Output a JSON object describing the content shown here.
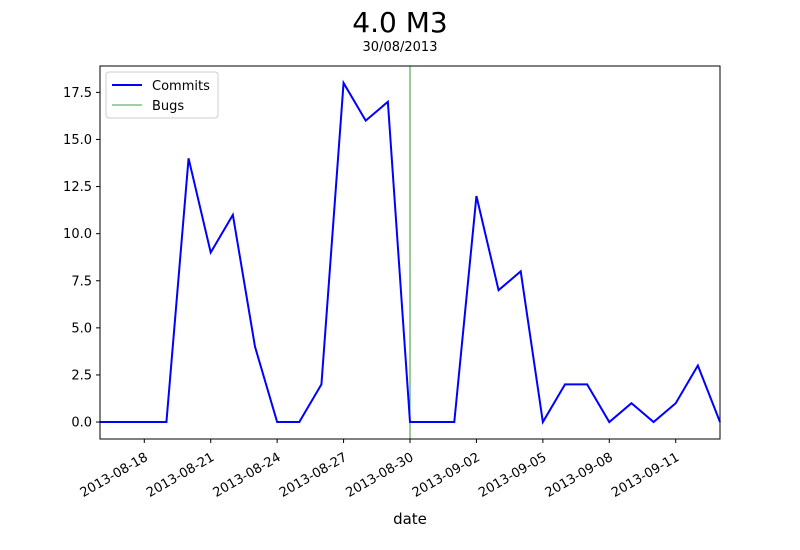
{
  "chart_data": {
    "type": "line",
    "title": "4.0 M3",
    "subtitle": "30/08/2013",
    "xlabel": "date",
    "ylabel": "",
    "x": [
      "2013-08-16",
      "2013-08-17",
      "2013-08-18",
      "2013-08-19",
      "2013-08-20",
      "2013-08-21",
      "2013-08-22",
      "2013-08-23",
      "2013-08-24",
      "2013-08-25",
      "2013-08-26",
      "2013-08-27",
      "2013-08-28",
      "2013-08-29",
      "2013-08-30",
      "2013-08-31",
      "2013-09-01",
      "2013-09-02",
      "2013-09-03",
      "2013-09-04",
      "2013-09-05",
      "2013-09-06",
      "2013-09-07",
      "2013-09-08",
      "2013-09-09",
      "2013-09-10",
      "2013-09-11",
      "2013-09-12",
      "2013-09-13"
    ],
    "series": [
      {
        "name": "Commits",
        "color": "#0000ff",
        "values": [
          0,
          0,
          0,
          0,
          14,
          9,
          11,
          4,
          0,
          0,
          2,
          18,
          16,
          17,
          0,
          0,
          0,
          12,
          7,
          8,
          0,
          2,
          2,
          0,
          1,
          0,
          1,
          3,
          0
        ]
      }
    ],
    "reference_lines": [
      {
        "name": "Bugs",
        "color": "#008000",
        "x": "2013-08-30"
      }
    ],
    "xlim": [
      "2013-08-16",
      "2013-09-13"
    ],
    "ylim": [
      -0.9,
      18.9
    ],
    "yticks": [
      0.0,
      2.5,
      5.0,
      7.5,
      10.0,
      12.5,
      15.0,
      17.5
    ],
    "ytick_labels": [
      "0.0",
      "2.5",
      "5.0",
      "7.5",
      "10.0",
      "12.5",
      "15.0",
      "17.5"
    ],
    "xticks": [
      "2013-08-18",
      "2013-08-21",
      "2013-08-24",
      "2013-08-27",
      "2013-08-30",
      "2013-09-02",
      "2013-09-05",
      "2013-09-08",
      "2013-09-11"
    ],
    "legend": {
      "position": "top-left",
      "entries": [
        "Commits",
        "Bugs"
      ]
    },
    "grid": false
  }
}
